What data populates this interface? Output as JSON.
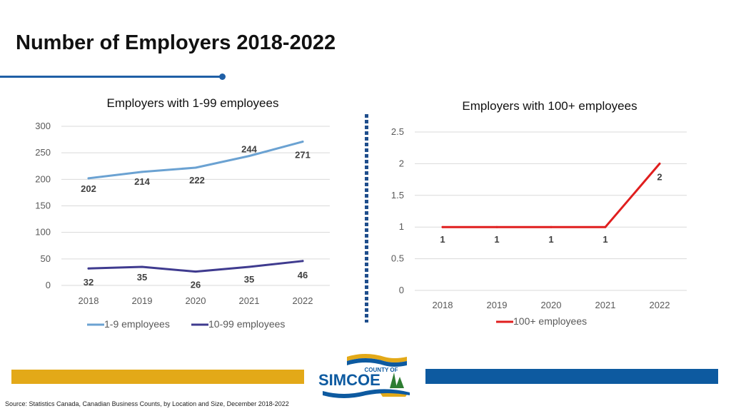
{
  "title": "Number of Employers 2018-2022",
  "source": "Source: Statistics Canada, Canadian Business Counts, by Location and Size, December 2018-2022",
  "logo": {
    "text_top": "COUNTY OF",
    "text_main": "SIMCOE"
  },
  "colors": {
    "series_1_9": "#6ba2d2",
    "series_10_99": "#3f3b8f",
    "series_100": "#e01e1e",
    "gold_band": "#e3a918",
    "blue_band": "#0d5aa0",
    "accent": "#1f5fa6"
  },
  "chart_data": [
    {
      "type": "line",
      "title": "Employers with 1-99 employees",
      "categories": [
        "2018",
        "2019",
        "2020",
        "2021",
        "2022"
      ],
      "ylim": [
        0,
        300
      ],
      "yticks": [
        0,
        50,
        100,
        150,
        200,
        250,
        300
      ],
      "grid": true,
      "legend": "bottom",
      "series": [
        {
          "name": "1-9 employees",
          "values": [
            202,
            214,
            222,
            244,
            271
          ]
        },
        {
          "name": "10-99 employees",
          "values": [
            32,
            35,
            26,
            35,
            46
          ]
        }
      ]
    },
    {
      "type": "line",
      "title": "Employers with 100+ employees",
      "categories": [
        "2018",
        "2019",
        "2020",
        "2021",
        "2022"
      ],
      "ylim": [
        0,
        2.5
      ],
      "yticks": [
        0,
        0.5,
        1,
        1.5,
        2,
        2.5
      ],
      "grid": true,
      "legend": "bottom",
      "series": [
        {
          "name": "100+ employees",
          "values": [
            1,
            1,
            1,
            1,
            2
          ]
        }
      ]
    }
  ]
}
